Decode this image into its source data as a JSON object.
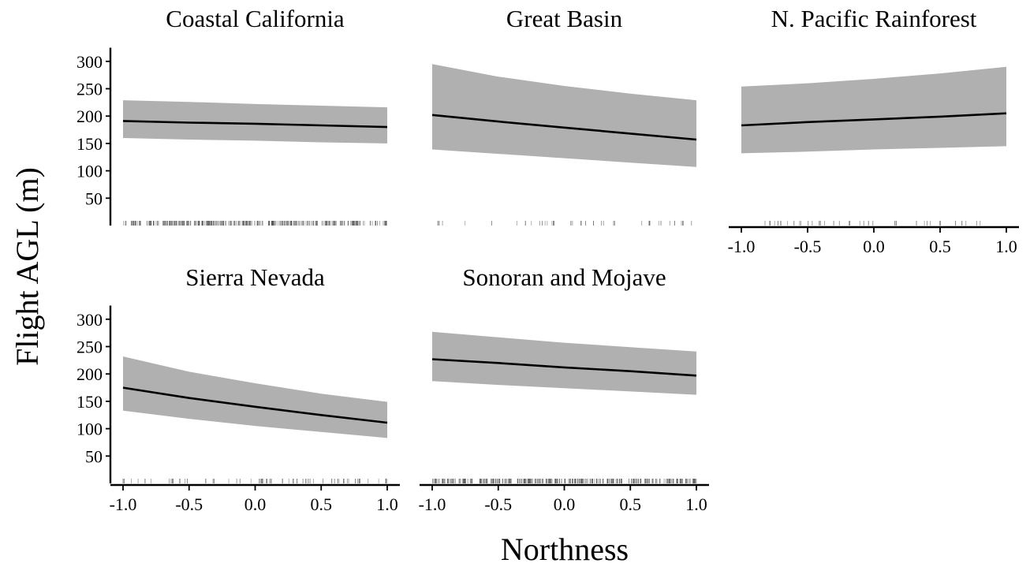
{
  "chart_data": {
    "type": "line",
    "xlabel": "Northness",
    "ylabel": "Flight AGL (m)",
    "xlim": [
      -1.0,
      1.0
    ],
    "ylim": [
      0,
      310
    ],
    "x_ticks": [
      "-1.0",
      "-0.5",
      "0.0",
      "0.5",
      "1.0"
    ],
    "y_ticks": [
      "50",
      "100",
      "150",
      "200",
      "250",
      "300"
    ],
    "band": "confidence interval (grey)",
    "rug": "observations along x axis",
    "panels": [
      {
        "title": "Coastal California",
        "x": [
          -1.0,
          -0.5,
          0.0,
          0.5,
          1.0
        ],
        "fit": [
          191,
          188,
          186,
          183,
          180
        ],
        "lower": [
          160,
          157,
          155,
          152,
          150
        ],
        "upper": [
          229,
          226,
          222,
          219,
          216
        ],
        "rug_density": "dense"
      },
      {
        "title": "Great Basin",
        "x": [
          -1.0,
          -0.5,
          0.0,
          0.5,
          1.0
        ],
        "fit": [
          202,
          190,
          179,
          168,
          157
        ],
        "lower": [
          139,
          131,
          123,
          115,
          107
        ],
        "upper": [
          295,
          272,
          255,
          241,
          229
        ],
        "rug_density": "sparse"
      },
      {
        "title": "N. Pacific Rainforest",
        "x": [
          -1.0,
          -0.5,
          0.0,
          0.5,
          1.0
        ],
        "fit": [
          183,
          189,
          194,
          199,
          205
        ],
        "lower": [
          132,
          135,
          139,
          142,
          145
        ],
        "upper": [
          254,
          260,
          268,
          278,
          290
        ],
        "rug_density": "sparse"
      },
      {
        "title": "Sierra Nevada",
        "x": [
          -1.0,
          -0.5,
          0.0,
          0.5,
          1.0
        ],
        "fit": [
          175,
          156,
          140,
          125,
          111
        ],
        "lower": [
          133,
          118,
          105,
          94,
          83
        ],
        "upper": [
          232,
          204,
          183,
          164,
          149
        ],
        "rug_density": "medium"
      },
      {
        "title": "Sonoran and Mojave",
        "x": [
          -1.0,
          -0.5,
          0.0,
          0.5,
          1.0
        ],
        "fit": [
          227,
          220,
          212,
          205,
          197
        ],
        "lower": [
          187,
          180,
          174,
          168,
          162
        ],
        "upper": [
          277,
          267,
          257,
          249,
          241
        ],
        "rug_density": "dense"
      }
    ]
  }
}
